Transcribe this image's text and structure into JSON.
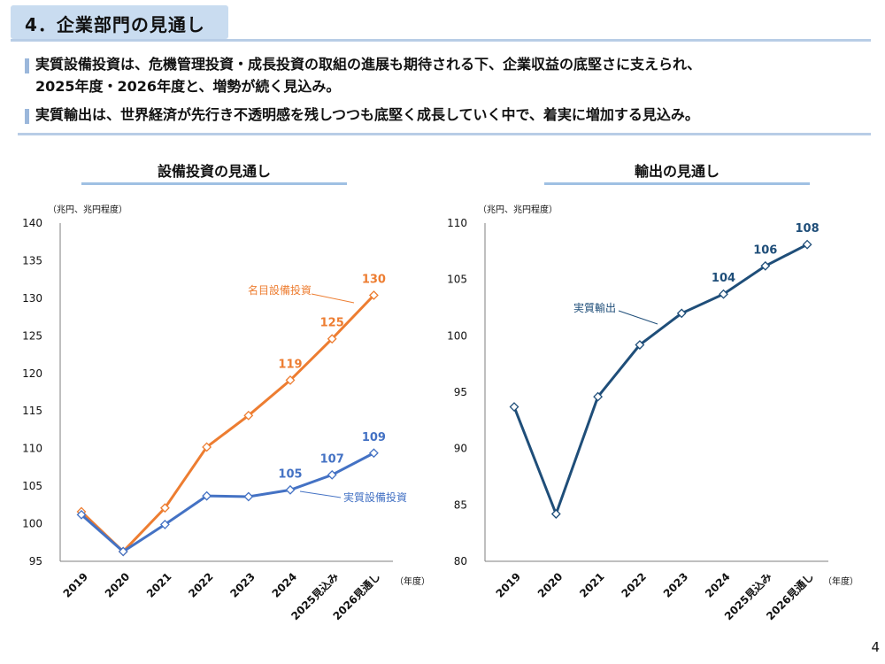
{
  "section": {
    "title": "4．企業部門の見通し"
  },
  "bullets": [
    "実質設備投資は、危機管理投資・成長投資の取組の進展も期待される下、企業収益の底堅さに支えられ、",
    "2025年度・2026年度と、増勢が続く見込み。",
    "実質輸出は、世界経済が先行き不透明感を残しつつも底堅く成長していく中で、着実に増加する見込み。"
  ],
  "page_number": "4",
  "colors": {
    "nominal": "#ed7d31",
    "real_invest": "#4472c4",
    "exports": "#1f4e79",
    "accent": "#b8cde6"
  },
  "chart_data": [
    {
      "type": "line",
      "title": "設備投資の見通し",
      "unit_label": "（兆円、兆円程度）",
      "x_unit_label": "（年度）",
      "categories": [
        "2019",
        "2020",
        "2021",
        "2022",
        "2023",
        "2024",
        "2025見込み",
        "2026見通し"
      ],
      "ylim": [
        95,
        140
      ],
      "yticks": [
        95,
        100,
        105,
        110,
        115,
        120,
        125,
        130,
        135,
        140
      ],
      "series": [
        {
          "name": "名目設備投資",
          "color": "#ed7d31",
          "values": [
            101.6,
            96.3,
            102.1,
            110.2,
            114.4,
            119.1,
            124.6,
            130.4
          ],
          "labels": [
            "",
            "",
            "",
            "",
            "",
            "119",
            "125",
            "130"
          ]
        },
        {
          "name": "実質設備投資",
          "color": "#4472c4",
          "values": [
            101.2,
            96.3,
            99.9,
            103.7,
            103.6,
            104.5,
            106.5,
            109.4
          ],
          "labels": [
            "",
            "",
            "",
            "",
            "",
            "105",
            "107",
            "109"
          ]
        }
      ]
    },
    {
      "type": "line",
      "title": "輸出の見通し",
      "unit_label": "（兆円、兆円程度）",
      "x_unit_label": "（年度）",
      "categories": [
        "2019",
        "2020",
        "2021",
        "2022",
        "2023",
        "2024",
        "2025見込み",
        "2026見通し"
      ],
      "ylim": [
        80,
        110
      ],
      "yticks": [
        80,
        85,
        90,
        95,
        100,
        105,
        110
      ],
      "series": [
        {
          "name": "実質輸出",
          "color": "#1f4e79",
          "values": [
            93.7,
            84.2,
            94.6,
            99.2,
            102.0,
            103.7,
            106.2,
            108.1
          ],
          "labels": [
            "",
            "",
            "",
            "",
            "",
            "104",
            "106",
            "108"
          ]
        }
      ]
    }
  ]
}
